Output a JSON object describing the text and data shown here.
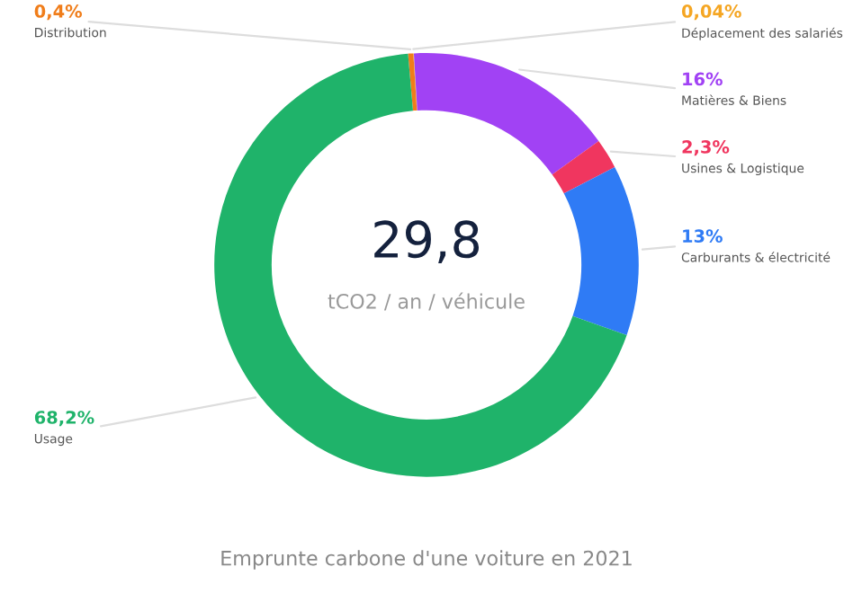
{
  "chart_data": {
    "type": "donut",
    "title": "Emprunte carbone d'une voiture en 2021",
    "categories": [
      "Distribution",
      "Déplacement des salariés",
      "Matières & Biens",
      "Usines & Logistique",
      "Carburants & électricité",
      "Usage"
    ],
    "values": [
      0.4,
      0.04,
      16,
      2.3,
      13,
      68.2
    ],
    "colors": [
      "#f07d1a",
      "#f5a623",
      "#a142f4",
      "#f0365f",
      "#2f7bf5",
      "#1fb36a"
    ],
    "value_labels": [
      "0,4%",
      "0,04%",
      "16%",
      "2,3%",
      "13%",
      "68,2%"
    ],
    "annotations": [
      "29,8",
      "tCO2 / an / véhicule"
    ]
  }
}
